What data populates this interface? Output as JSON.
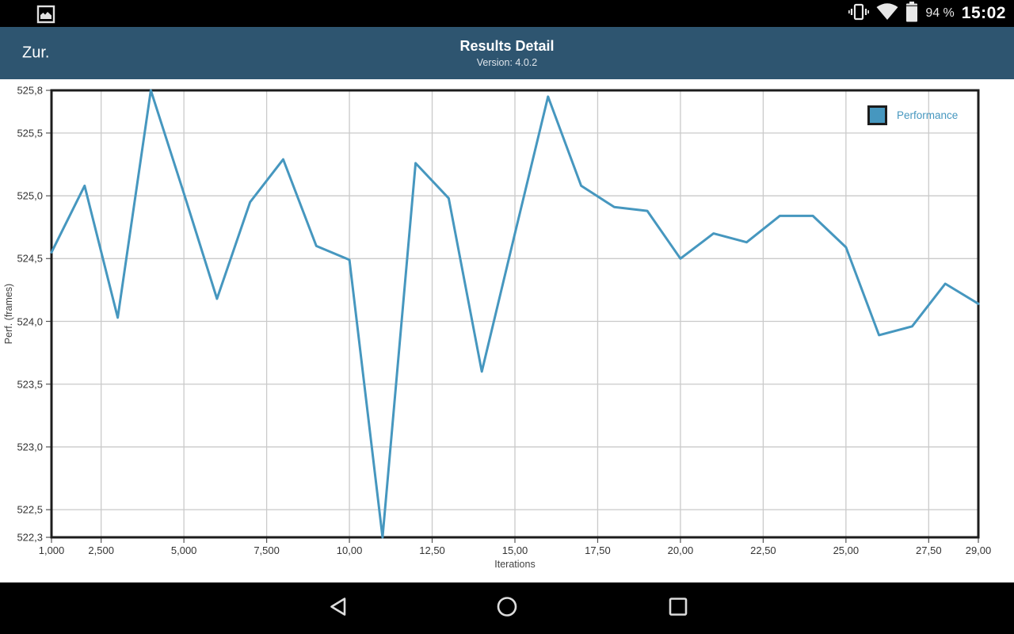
{
  "colors": {
    "header_bg": "#2e5570",
    "accent": "#4697bf",
    "grid": "#cacaca",
    "plot_border": "#1c1c1c",
    "axis_text": "#333333"
  },
  "status_bar": {
    "time": "15:02",
    "battery_percent": "94 %",
    "icons": [
      "screenshot-icon",
      "vibrate-icon",
      "wifi-icon",
      "battery-icon"
    ]
  },
  "header": {
    "back_label": "Zur.",
    "title": "Results Detail",
    "subtitle": "Version: 4.0.2"
  },
  "chart_data": {
    "type": "line",
    "title": "",
    "xlabel": "Iterations",
    "ylabel": "Perf. (frames)",
    "grid": true,
    "legend_position": "top-right",
    "xlim": [
      1,
      29
    ],
    "ylim": [
      522.28,
      525.84
    ],
    "x_ticks": [
      {
        "label": "1,000",
        "value": 1
      },
      {
        "label": "2,500",
        "value": 2.5
      },
      {
        "label": "5,000",
        "value": 5
      },
      {
        "label": "7,500",
        "value": 7.5
      },
      {
        "label": "10,00",
        "value": 10
      },
      {
        "label": "12,50",
        "value": 12.5
      },
      {
        "label": "15,00",
        "value": 15
      },
      {
        "label": "17,50",
        "value": 17.5
      },
      {
        "label": "20,00",
        "value": 20
      },
      {
        "label": "22,50",
        "value": 22.5
      },
      {
        "label": "25,00",
        "value": 25
      },
      {
        "label": "27,50",
        "value": 27.5
      },
      {
        "label": "29,00",
        "value": 29
      }
    ],
    "y_ticks": [
      {
        "label": "525,8",
        "value": 525.84
      },
      {
        "label": "525,5",
        "value": 525.5
      },
      {
        "label": "525,0",
        "value": 525.0
      },
      {
        "label": "524,5",
        "value": 524.5
      },
      {
        "label": "524,0",
        "value": 524.0
      },
      {
        "label": "523,5",
        "value": 523.5
      },
      {
        "label": "523,0",
        "value": 523.0
      },
      {
        "label": "522,5",
        "value": 522.5
      },
      {
        "label": "522,3",
        "value": 522.28
      }
    ],
    "series": [
      {
        "name": "Performance",
        "color": "#4697bf",
        "x": [
          1,
          2,
          3,
          4,
          5,
          6,
          7,
          8,
          9,
          10,
          11,
          12,
          13,
          14,
          15,
          16,
          17,
          18,
          19,
          20,
          21,
          22,
          23,
          24,
          25,
          26,
          27,
          28,
          29
        ],
        "values": [
          524.55,
          525.08,
          524.03,
          525.84,
          525.02,
          524.18,
          524.95,
          525.29,
          524.6,
          524.49,
          522.28,
          525.26,
          524.98,
          523.6,
          524.7,
          525.79,
          525.08,
          524.91,
          524.88,
          524.5,
          524.7,
          524.63,
          524.84,
          524.84,
          524.59,
          523.89,
          523.96,
          524.3,
          524.14
        ]
      }
    ]
  },
  "nav_bar": {
    "items": [
      "back",
      "home",
      "recents"
    ]
  }
}
